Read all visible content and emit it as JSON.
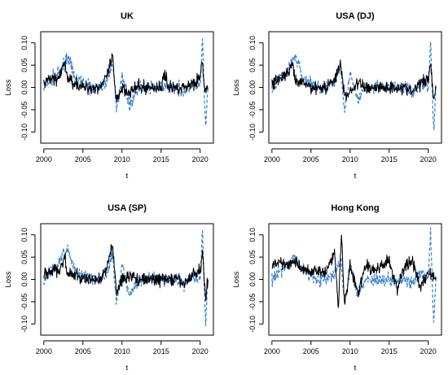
{
  "figure": {
    "xlabel": "t",
    "ylabel": "Loss"
  },
  "chart_data": [
    {
      "type": "line",
      "title": "UK",
      "xlabel": "t",
      "ylabel": "Loss",
      "xlim": [
        1999.6,
        2021.7
      ],
      "ylim": [
        -0.125,
        0.125
      ],
      "xticks": [
        2000,
        2005,
        2010,
        2015,
        2020
      ],
      "yticks": [
        -0.1,
        -0.05,
        0.0,
        0.05,
        0.1
      ],
      "xtick_labels": [
        "2000",
        "2005",
        "2010",
        "2015",
        "2020"
      ],
      "ytick_labels": [
        "-0.10",
        "-0.05",
        "0.00",
        "0.05",
        "0.10"
      ],
      "series": [
        {
          "color": "#000000",
          "style": "solid",
          "x": [
            2000,
            2001,
            2002,
            2002.7,
            2003,
            2004,
            2005,
            2006,
            2007,
            2008,
            2008.8,
            2009.2,
            2010,
            2011,
            2012,
            2013,
            2014,
            2015,
            2015.5,
            2016,
            2017,
            2018,
            2019,
            2020,
            2020.3,
            2020.6,
            2021
          ],
          "y": [
            0.01,
            0.02,
            0.02,
            0.06,
            0.02,
            0.01,
            0.0,
            0.0,
            0.0,
            0.02,
            0.07,
            -0.03,
            0.0,
            -0.01,
            0.0,
            0.0,
            0.0,
            0.0,
            0.03,
            0.0,
            0.0,
            0.0,
            0.01,
            0.02,
            0.06,
            -0.01,
            0.0
          ]
        },
        {
          "color": "#3f86cf",
          "style": "dashed",
          "x": [
            2000,
            2001,
            2002,
            2003,
            2004,
            2005,
            2006,
            2007,
            2008,
            2008.8,
            2009.3,
            2010,
            2011,
            2012,
            2013,
            2014,
            2015,
            2016,
            2017,
            2018,
            2019,
            2020,
            2020.3,
            2020.7,
            2021
          ],
          "y": [
            0.0,
            0.02,
            0.03,
            0.07,
            0.02,
            0.01,
            0.0,
            0.0,
            0.01,
            0.06,
            -0.05,
            0.03,
            -0.04,
            0.0,
            0.0,
            0.0,
            0.0,
            0.0,
            0.0,
            -0.01,
            0.01,
            0.0,
            0.11,
            -0.1,
            0.0
          ]
        }
      ]
    },
    {
      "type": "line",
      "title": "USA (DJ)",
      "xlabel": "t",
      "ylabel": "Loss",
      "xlim": [
        1999.6,
        2021.7
      ],
      "ylim": [
        -0.125,
        0.125
      ],
      "xticks": [
        2000,
        2005,
        2010,
        2015,
        2020
      ],
      "yticks": [
        -0.1,
        -0.05,
        0.0,
        0.05,
        0.1
      ],
      "xtick_labels": [
        "2000",
        "2005",
        "2010",
        "2015",
        "2020"
      ],
      "ytick_labels": [
        "-0.10",
        "-0.05",
        "0.00",
        "0.05",
        "0.10"
      ],
      "series": [
        {
          "color": "#000000",
          "style": "solid",
          "x": [
            2000,
            2001,
            2002,
            2002.7,
            2003,
            2004,
            2005,
            2006,
            2007,
            2008,
            2008.8,
            2009.3,
            2010,
            2011,
            2012,
            2013,
            2014,
            2015,
            2016,
            2017,
            2018,
            2019,
            2020,
            2020.3,
            2020.7,
            2021
          ],
          "y": [
            0.01,
            0.02,
            0.03,
            0.05,
            0.01,
            0.01,
            0.0,
            0.0,
            0.0,
            0.02,
            0.05,
            -0.02,
            -0.01,
            0.01,
            0.0,
            0.0,
            0.0,
            0.0,
            0.0,
            0.0,
            -0.01,
            0.01,
            0.02,
            0.06,
            -0.03,
            0.0
          ]
        },
        {
          "color": "#3f86cf",
          "style": "dashed",
          "x": [
            2000,
            2001,
            2002,
            2003,
            2004,
            2005,
            2006,
            2007,
            2008,
            2008.8,
            2009.3,
            2010,
            2011,
            2012,
            2013,
            2014,
            2015,
            2016,
            2017,
            2018,
            2019,
            2020,
            2020.3,
            2020.7,
            2021
          ],
          "y": [
            0.0,
            0.02,
            0.04,
            0.07,
            0.02,
            0.01,
            0.0,
            0.0,
            0.01,
            0.05,
            -0.05,
            0.03,
            -0.03,
            0.0,
            0.0,
            0.0,
            0.0,
            0.0,
            0.0,
            -0.01,
            0.01,
            0.0,
            0.11,
            -0.1,
            0.0
          ]
        }
      ]
    },
    {
      "type": "line",
      "title": "USA (SP)",
      "xlabel": "t",
      "ylabel": "Loss",
      "xlim": [
        1999.6,
        2021.7
      ],
      "ylim": [
        -0.125,
        0.125
      ],
      "xticks": [
        2000,
        2005,
        2010,
        2015,
        2020
      ],
      "yticks": [
        -0.1,
        -0.05,
        0.0,
        0.05,
        0.1
      ],
      "xtick_labels": [
        "2000",
        "2005",
        "2010",
        "2015",
        "2020"
      ],
      "ytick_labels": [
        "-0.10",
        "-0.05",
        "0.00",
        "0.05",
        "0.10"
      ],
      "series": [
        {
          "color": "#000000",
          "style": "solid",
          "x": [
            2000,
            2001,
            2002,
            2002.7,
            2003,
            2004,
            2005,
            2006,
            2007,
            2008,
            2008.8,
            2009.3,
            2010,
            2011,
            2012,
            2013,
            2014,
            2015,
            2016,
            2017,
            2018,
            2019,
            2020,
            2020.3,
            2020.7,
            2021
          ],
          "y": [
            0.01,
            0.02,
            0.02,
            0.05,
            0.01,
            0.01,
            0.0,
            0.0,
            0.0,
            0.02,
            0.08,
            -0.03,
            0.0,
            0.01,
            0.0,
            0.0,
            0.0,
            0.0,
            0.0,
            0.0,
            -0.01,
            0.01,
            0.02,
            0.06,
            -0.04,
            0.0
          ]
        },
        {
          "color": "#3f86cf",
          "style": "dashed",
          "x": [
            2000,
            2001,
            2002,
            2003,
            2004,
            2005,
            2006,
            2007,
            2008,
            2008.8,
            2009.3,
            2010,
            2011,
            2012,
            2013,
            2014,
            2015,
            2016,
            2017,
            2018,
            2019,
            2020,
            2020.3,
            2020.7,
            2021
          ],
          "y": [
            0.0,
            0.02,
            0.04,
            0.07,
            0.02,
            0.01,
            0.0,
            0.0,
            0.01,
            0.06,
            -0.06,
            0.03,
            -0.04,
            0.0,
            0.0,
            0.0,
            0.0,
            0.0,
            0.0,
            -0.01,
            0.01,
            0.0,
            0.11,
            -0.1,
            0.0
          ]
        }
      ]
    },
    {
      "type": "line",
      "title": "Hong Kong",
      "xlabel": "t",
      "ylabel": "Loss",
      "xlim": [
        1999.6,
        2021.7
      ],
      "ylim": [
        -0.125,
        0.125
      ],
      "xticks": [
        2000,
        2005,
        2010,
        2015,
        2020
      ],
      "yticks": [
        -0.1,
        -0.05,
        0.0,
        0.05,
        0.1
      ],
      "xtick_labels": [
        "2000",
        "2005",
        "2010",
        "2015",
        "2020"
      ],
      "ytick_labels": [
        "-0.10",
        "-0.05",
        "0.00",
        "0.05",
        "0.10"
      ],
      "series": [
        {
          "color": "#000000",
          "style": "solid",
          "x": [
            2000,
            2001,
            2002,
            2003,
            2004,
            2005,
            2006,
            2007,
            2008,
            2008.5,
            2008.9,
            2009.3,
            2010,
            2011,
            2012,
            2013,
            2014,
            2015,
            2016,
            2017,
            2018,
            2019,
            2020,
            2021
          ],
          "y": [
            0.03,
            0.04,
            0.03,
            0.04,
            0.02,
            0.02,
            0.02,
            0.02,
            0.06,
            -0.06,
            0.11,
            -0.06,
            0.03,
            -0.03,
            0.03,
            0.02,
            0.03,
            0.04,
            -0.02,
            0.03,
            0.04,
            -0.02,
            0.02,
            0.0
          ]
        },
        {
          "color": "#3f86cf",
          "style": "dashed",
          "x": [
            2000,
            2001,
            2002,
            2003,
            2004,
            2005,
            2006,
            2007,
            2008,
            2008.8,
            2009.3,
            2010,
            2011,
            2012,
            2013,
            2014,
            2015,
            2016,
            2017,
            2018,
            2019,
            2020,
            2020.3,
            2020.7,
            2021
          ],
          "y": [
            0.0,
            0.02,
            0.03,
            0.05,
            0.02,
            0.01,
            0.0,
            0.0,
            0.01,
            0.05,
            -0.05,
            0.03,
            -0.03,
            0.0,
            0.0,
            0.0,
            0.0,
            0.0,
            0.0,
            -0.01,
            0.01,
            0.0,
            0.11,
            -0.1,
            0.0
          ]
        }
      ]
    }
  ]
}
